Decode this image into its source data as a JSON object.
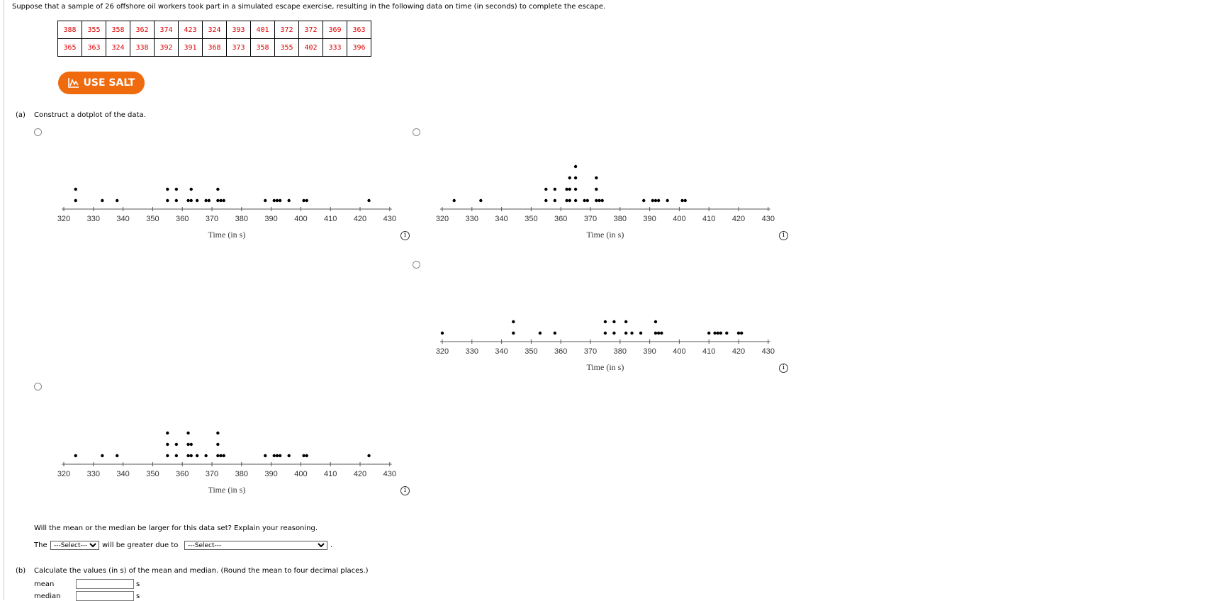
{
  "intro": "Suppose that a sample of 26 offshore oil workers took part in a simulated escape exercise, resulting in the following data on time (in seconds) to complete the escape.",
  "table": {
    "rows": [
      [
        "388",
        "355",
        "358",
        "362",
        "374",
        "423",
        "324",
        "393",
        "401",
        "372",
        "372",
        "369",
        "363"
      ],
      [
        "365",
        "363",
        "324",
        "338",
        "392",
        "391",
        "368",
        "373",
        "358",
        "355",
        "402",
        "333",
        "396"
      ]
    ]
  },
  "salt_button": "USE SALT",
  "part_a_label": "(a)",
  "part_a_text": "Construct a dotplot of the data.",
  "icons": {
    "salt": "chart-icon",
    "radio": "radio-icon",
    "info": "info-icon"
  },
  "colors": {
    "salt": "#f06a0e",
    "data_text": "#e00000"
  },
  "plot_ticks": [
    "320",
    "330",
    "340",
    "350",
    "360",
    "370",
    "380",
    "390",
    "400",
    "410",
    "420",
    "430"
  ],
  "plot_xlabel": "Time (in s)",
  "chart_data": [
    {
      "type": "scatter",
      "xlabel": "Time (in s)",
      "xlim": [
        320,
        430
      ],
      "x": [
        324,
        324,
        333,
        338,
        355,
        355,
        358,
        358,
        362,
        363,
        363,
        365,
        368,
        369,
        372,
        372,
        373,
        374,
        388,
        391,
        392,
        393,
        396,
        401,
        402,
        423
      ],
      "y": [
        1,
        2,
        1,
        1,
        1,
        2,
        1,
        2,
        1,
        1,
        2,
        1,
        1,
        1,
        1,
        2,
        1,
        1,
        1,
        1,
        1,
        1,
        1,
        1,
        1,
        1
      ]
    },
    {
      "type": "scatter",
      "xlabel": "Time (in s)",
      "xlim": [
        320,
        430
      ],
      "x": [
        324,
        333,
        355,
        355,
        358,
        358,
        362,
        362,
        363,
        363,
        363,
        365,
        365,
        365,
        365,
        368,
        369,
        372,
        372,
        372,
        373,
        374,
        388,
        391,
        392,
        393,
        396,
        401,
        402
      ],
      "y": [
        1,
        1,
        1,
        2,
        1,
        2,
        1,
        2,
        1,
        2,
        3,
        1,
        2,
        3,
        4,
        1,
        1,
        1,
        2,
        3,
        1,
        1,
        1,
        1,
        1,
        1,
        1,
        1,
        1
      ]
    },
    {
      "type": "scatter",
      "xlabel": "Time (in s)",
      "xlim": [
        320,
        430
      ],
      "x": [
        320,
        344,
        344,
        353,
        358,
        375,
        375,
        378,
        378,
        382,
        382,
        384,
        387,
        392,
        392,
        393,
        394,
        410,
        412,
        413,
        414,
        416,
        420,
        421
      ],
      "y": [
        1,
        1,
        2,
        1,
        1,
        1,
        2,
        1,
        2,
        1,
        2,
        1,
        1,
        1,
        2,
        1,
        1,
        1,
        1,
        1,
        1,
        1,
        1,
        1
      ]
    },
    {
      "type": "scatter",
      "xlabel": "Time (in s)",
      "xlim": [
        320,
        430
      ],
      "x": [
        324,
        333,
        338,
        355,
        355,
        355,
        358,
        358,
        362,
        362,
        362,
        363,
        363,
        365,
        368,
        372,
        372,
        372,
        373,
        374,
        388,
        391,
        392,
        393,
        396,
        401,
        402,
        423
      ],
      "y": [
        1,
        1,
        1,
        1,
        2,
        3,
        1,
        2,
        1,
        2,
        3,
        1,
        2,
        1,
        1,
        1,
        2,
        3,
        1,
        1,
        1,
        1,
        1,
        1,
        1,
        1,
        1,
        1
      ]
    }
  ],
  "question_text": "Will the mean or the median be larger for this data set? Explain your reasoning.",
  "sentence": {
    "prefix": "The",
    "mid": "will be greater due to",
    "suffix": "."
  },
  "select1": "---Select---",
  "select2": "---Select---",
  "part_b_label": "(b)",
  "part_b_text": "Calculate the values (in s) of the mean and median. (Round the mean to four decimal places.)",
  "mean_label": "mean",
  "median_label": "median",
  "unit": "s"
}
